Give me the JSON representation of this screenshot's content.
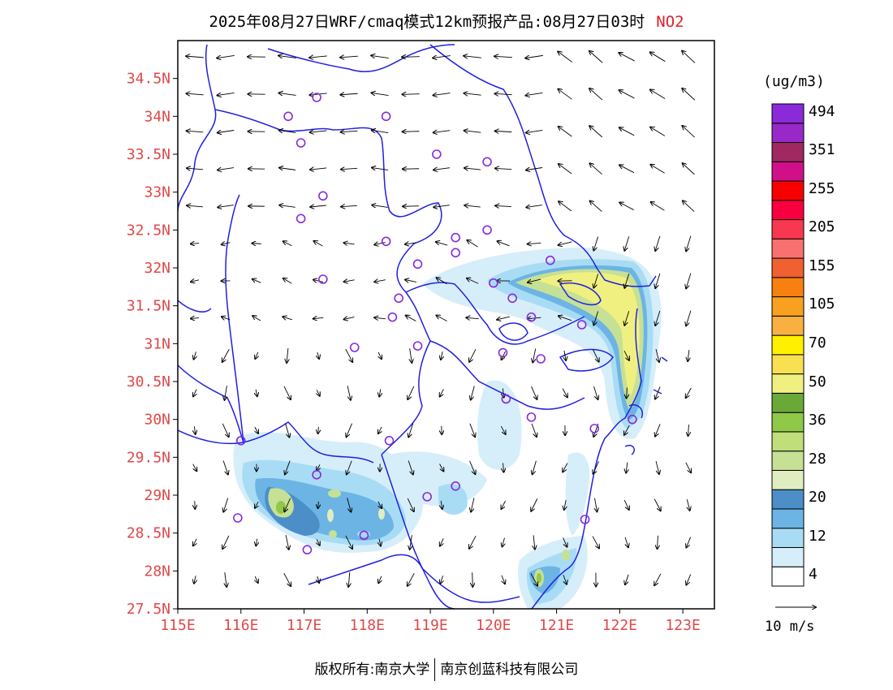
{
  "title": {
    "main": "2025年08月27日WRF/cmaq模式12km预报产品:08月27日03时",
    "species": "NO2"
  },
  "axes": {
    "lat_labels": [
      "34.5N",
      "34N",
      "33.5N",
      "33N",
      "32.5N",
      "32N",
      "31.5N",
      "31N",
      "30.5N",
      "30N",
      "29.5N",
      "29N",
      "28.5N",
      "28N",
      "27.5N"
    ],
    "lon_labels": [
      "115E",
      "116E",
      "117E",
      "118E",
      "119E",
      "120E",
      "121E",
      "122E",
      "123E"
    ]
  },
  "colorbar": {
    "units": "(ug/m3)",
    "colors": [
      "#ffffff",
      "#d6eefa",
      "#a8dcf5",
      "#6cb4e4",
      "#4c8ec8",
      "#e0edc0",
      "#c6e096",
      "#c0de7a",
      "#90c848",
      "#6aa838",
      "#f0f080",
      "#f8e050",
      "#fff000",
      "#f8b040",
      "#f8a020",
      "#f88010",
      "#f06030",
      "#f87070",
      "#f83850",
      "#f80040",
      "#f80000",
      "#d01088",
      "#a02860",
      "#9828c8",
      "#8a2ad8"
    ],
    "labels": [
      "4",
      "12",
      "20",
      "28",
      "36",
      "50",
      "70",
      "105",
      "155",
      "205",
      "255",
      "351",
      "494"
    ]
  },
  "wind_reference": {
    "label": "10 m/s"
  },
  "stations": [
    [
      116.75,
      34.0
    ],
    [
      117.2,
      34.25
    ],
    [
      118.3,
      34.0
    ],
    [
      116.95,
      33.65
    ],
    [
      119.1,
      33.5
    ],
    [
      119.9,
      33.4
    ],
    [
      117.3,
      32.95
    ],
    [
      116.95,
      32.65
    ],
    [
      119.9,
      32.5
    ],
    [
      118.3,
      32.35
    ],
    [
      119.4,
      32.4
    ],
    [
      119.4,
      32.2
    ],
    [
      118.8,
      32.05
    ],
    [
      117.3,
      31.85
    ],
    [
      120.0,
      31.8
    ],
    [
      120.9,
      32.1
    ],
    [
      120.3,
      31.6
    ],
    [
      118.5,
      31.6
    ],
    [
      118.4,
      31.35
    ],
    [
      120.6,
      31.35
    ],
    [
      121.4,
      31.25
    ],
    [
      117.8,
      30.95
    ],
    [
      118.8,
      30.97
    ],
    [
      120.15,
      30.88
    ],
    [
      120.75,
      30.8
    ],
    [
      120.2,
      30.27
    ],
    [
      120.6,
      30.03
    ],
    [
      122.2,
      30.0
    ],
    [
      121.6,
      29.88
    ],
    [
      116.0,
      29.72
    ],
    [
      118.35,
      29.72
    ],
    [
      117.2,
      29.27
    ],
    [
      119.4,
      29.12
    ],
    [
      118.95,
      28.98
    ],
    [
      115.95,
      28.7
    ],
    [
      121.45,
      28.68
    ],
    [
      117.95,
      28.47
    ],
    [
      117.05,
      28.28
    ]
  ],
  "footer": {
    "left": "版权所有:南京大学",
    "right": "南京创蓝科技有限公司"
  }
}
